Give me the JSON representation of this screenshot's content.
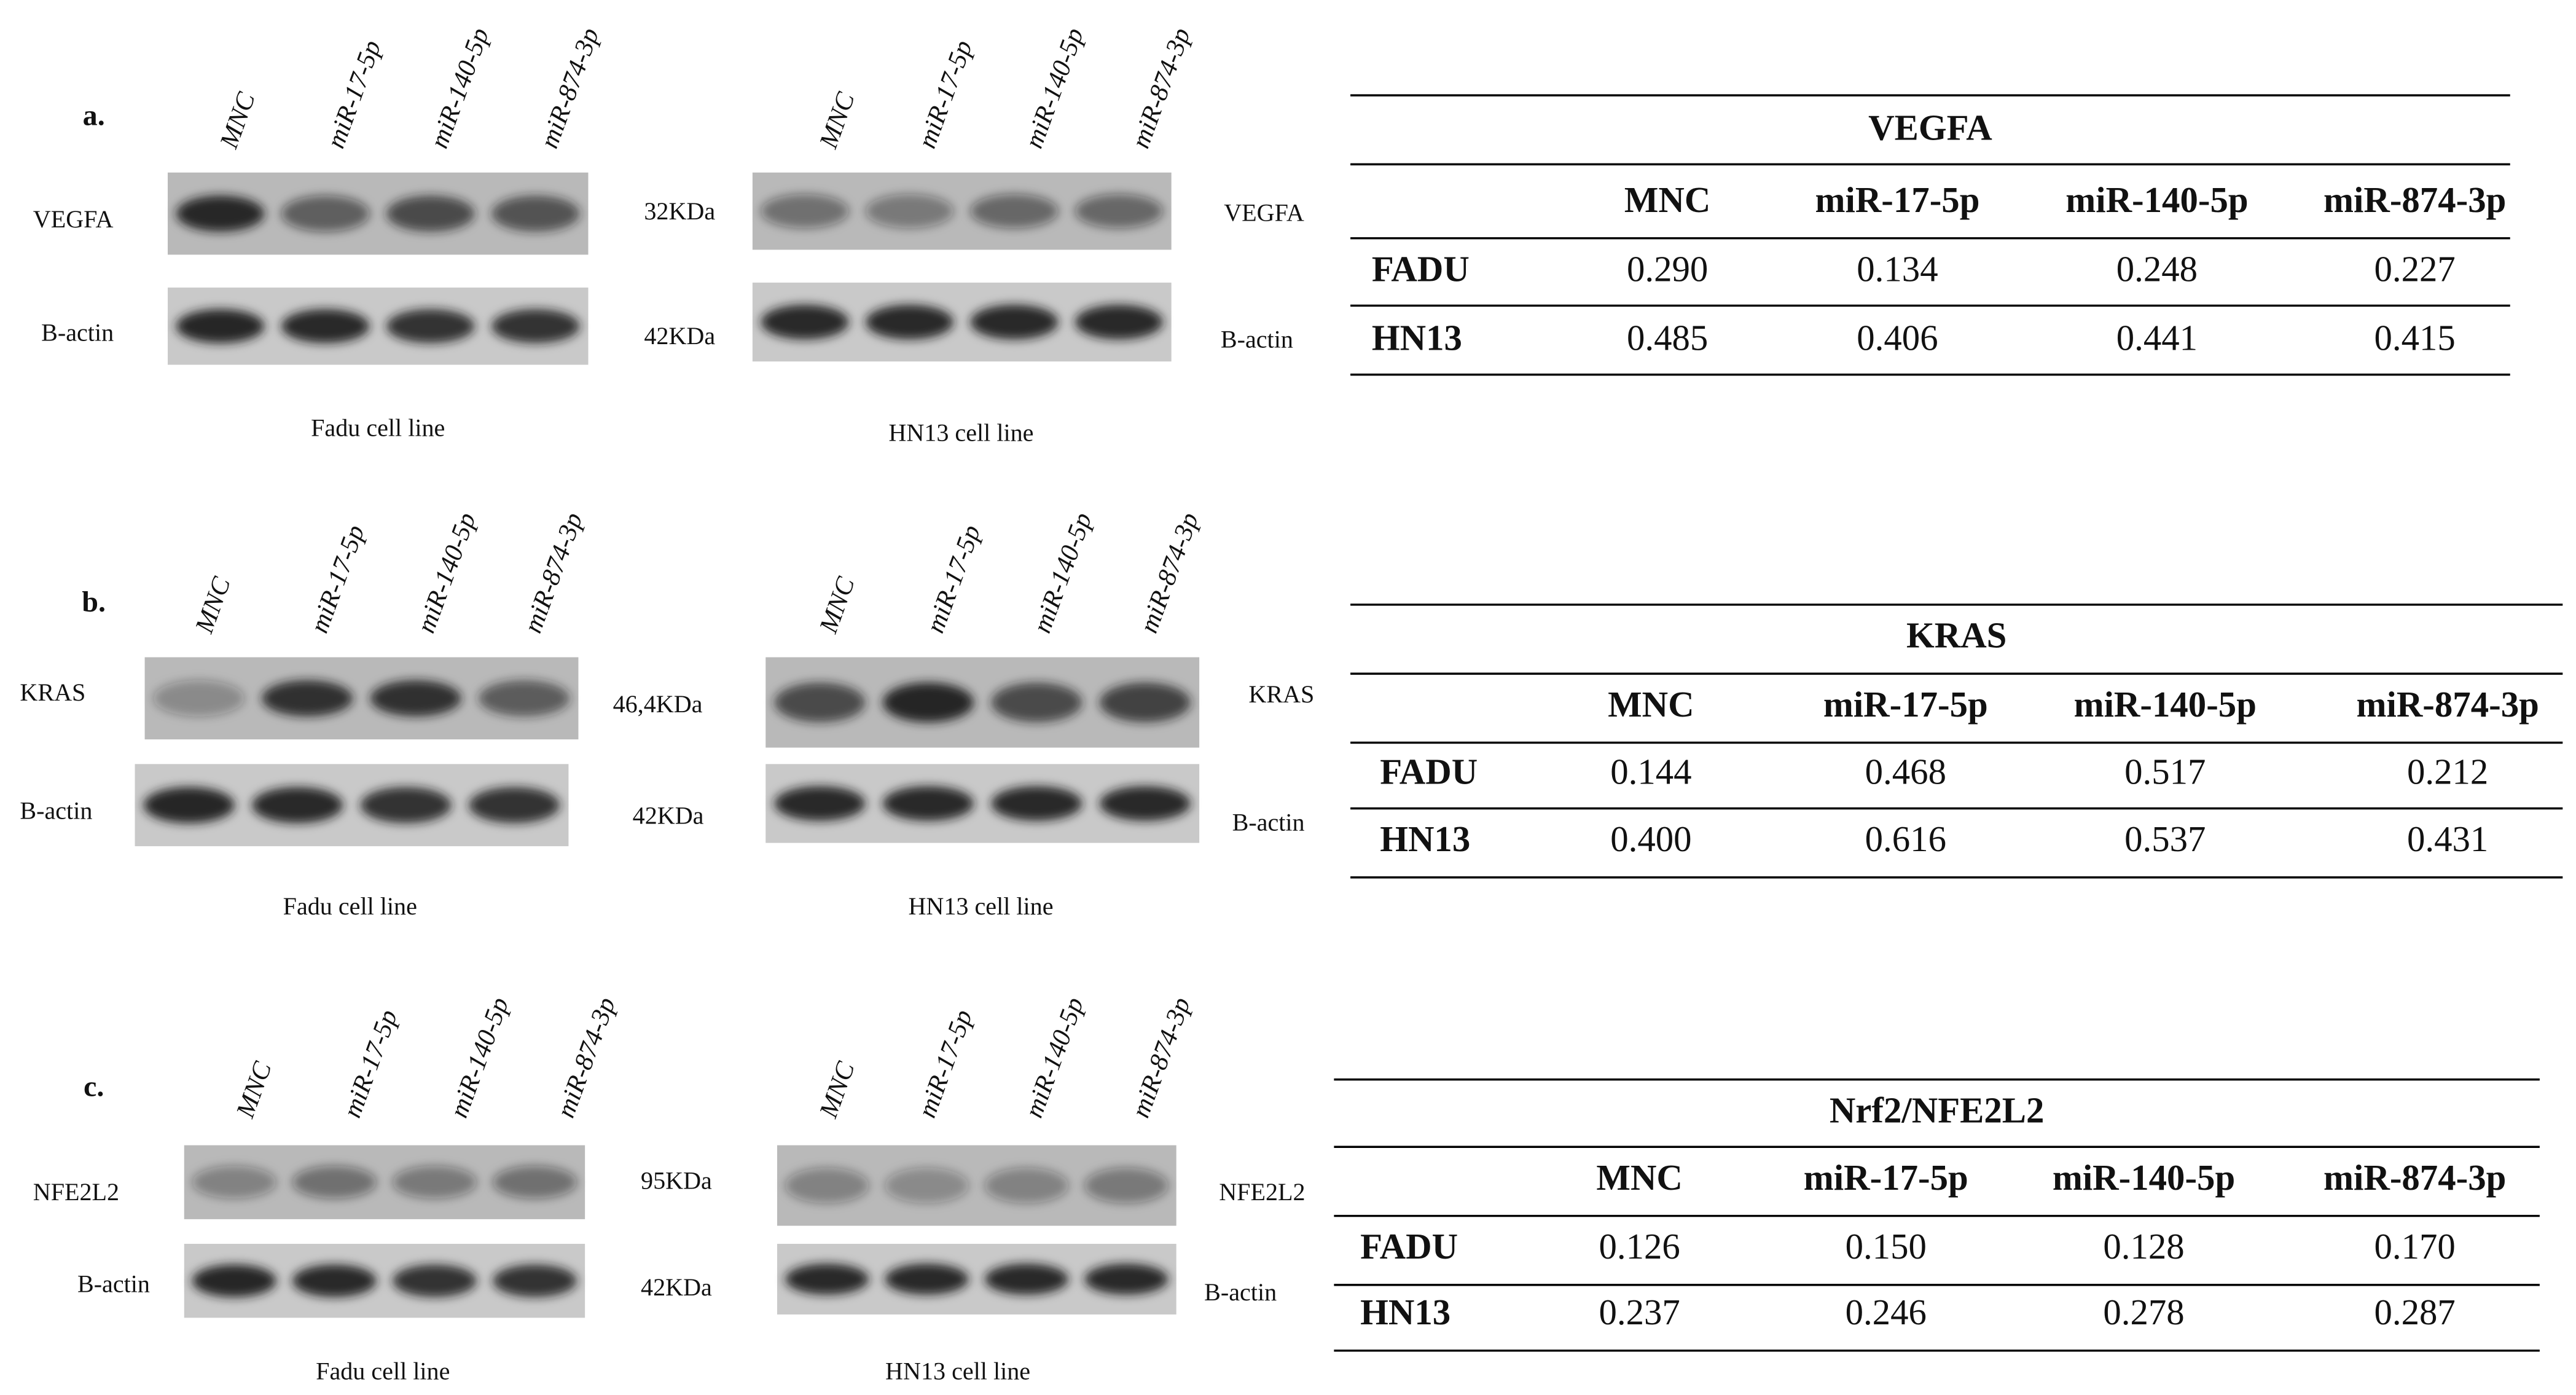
{
  "panels": [
    {
      "label": "a.",
      "fadu": {
        "lanes": [
          "MNC",
          "miR-17-5p",
          "miR-140-5p",
          "miR-874-3p"
        ],
        "target": "VEGFA",
        "control": "B-actin",
        "caption": "Fadu cell line"
      },
      "hn13": {
        "lanes": [
          "MNC",
          "miR-17-5p",
          "miR-140-5p",
          "miR-874-3p"
        ],
        "target_kda": "32KDa",
        "control_kda": "42KDa",
        "target": "VEGFA",
        "control": "B-actin",
        "caption": "HN13 cell line"
      },
      "table": {
        "title": "VEGFA",
        "header": [
          "MNC",
          "miR-17-5p",
          "miR-140-5p",
          "miR-874-3p"
        ],
        "rows": [
          [
            "FADU",
            "0.290",
            "0.134",
            "0.248",
            "0.227"
          ],
          [
            "HN13",
            "0.485",
            "0.406",
            "0.441",
            "0.415"
          ]
        ]
      }
    },
    {
      "label": "b.",
      "fadu": {
        "lanes": [
          "MNC",
          "miR-17-5p",
          "miR-140-5p",
          "miR-874-3p"
        ],
        "target": "KRAS",
        "control": "B-actin",
        "caption": "Fadu cell line"
      },
      "hn13": {
        "lanes": [
          "MNC",
          "miR-17-5p",
          "miR-140-5p",
          "miR-874-3p"
        ],
        "target_kda": "46,4KDa",
        "control_kda": "42KDa",
        "target": "KRAS",
        "control": "B-actin",
        "caption": "HN13 cell line"
      },
      "table": {
        "title": "KRAS",
        "header": [
          "MNC",
          "miR-17-5p",
          "miR-140-5p",
          "miR-874-3p"
        ],
        "rows": [
          [
            "FADU",
            "0.144",
            "0.468",
            "0.517",
            "0.212"
          ],
          [
            "HN13",
            "0.400",
            "0.616",
            "0.537",
            "0.431"
          ]
        ]
      }
    },
    {
      "label": "c.",
      "fadu": {
        "lanes": [
          "MNC",
          "miR-17-5p",
          "miR-140-5p",
          "miR-874-3p"
        ],
        "target": "NFE2L2",
        "control": "B-actin",
        "caption": "Fadu cell line"
      },
      "hn13": {
        "lanes": [
          "MNC",
          "miR-17-5p",
          "miR-140-5p",
          "miR-874-3p"
        ],
        "target_kda": "95KDa",
        "control_kda": "42KDa",
        "target": "NFE2L2",
        "control": "B-actin",
        "caption": "HN13 cell line"
      },
      "table": {
        "title": "Nrf2/NFE2L2",
        "header": [
          "MNC",
          "miR-17-5p",
          "miR-140-5p",
          "miR-874-3p"
        ],
        "rows": [
          [
            "FADU",
            "0.126",
            "0.150",
            "0.128",
            "0.170"
          ],
          [
            "HN13",
            "0.237",
            "0.246",
            "0.278",
            "0.287"
          ]
        ]
      }
    }
  ]
}
